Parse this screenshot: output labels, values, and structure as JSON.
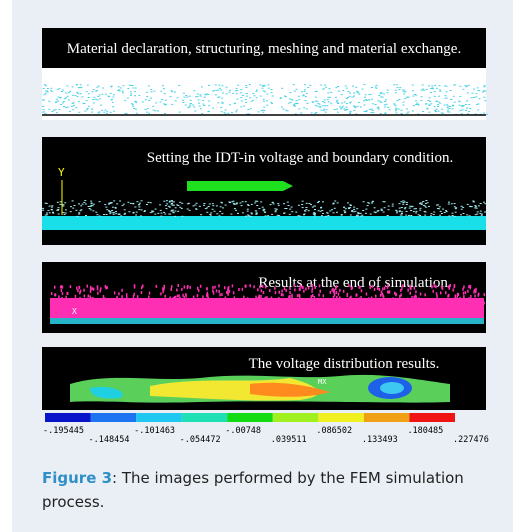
{
  "panels": [
    {
      "caption": "Material declaration, structuring, meshing and material exchange."
    },
    {
      "caption": "Setting the IDT-in voltage and boundary condition.",
      "axis_label": "Y"
    },
    {
      "caption": "Results at the end of simulation.",
      "axis_label": "X"
    },
    {
      "caption": "The voltage distribution results.",
      "marker": "MX"
    }
  ],
  "colorbar": {
    "labels": [
      "-.195445",
      "-.148454",
      "-.101463",
      "-.054472",
      "-.00748",
      ".039511",
      ".086502",
      ".133493",
      ".180485",
      ".227476"
    ]
  },
  "figure": {
    "label": "Figure 3",
    "caption": ": The images performed by the FEM simulation process."
  }
}
